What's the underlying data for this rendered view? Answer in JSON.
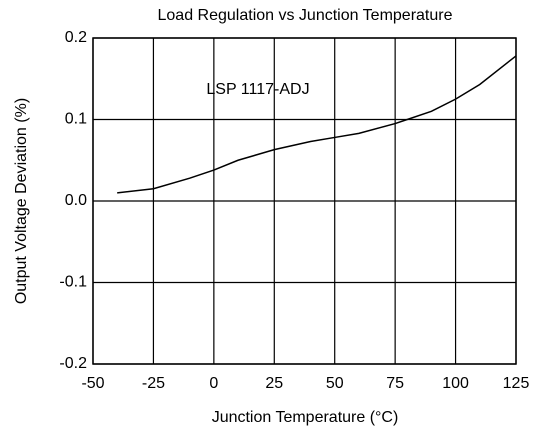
{
  "chart_data": {
    "type": "line",
    "title": "Load Regulation vs Junction Temperature",
    "xlabel": "Junction Temperature (°C)",
    "ylabel": "Output Voltage Deviation (%)",
    "annotation": "LSP 1117-ADJ",
    "x": [
      -40,
      -25,
      -10,
      0,
      10,
      25,
      40,
      50,
      60,
      75,
      80,
      90,
      100,
      110,
      125
    ],
    "series": [
      {
        "name": "LSP 1117-ADJ",
        "color": "#000000",
        "values": [
          0.01,
          0.015,
          0.028,
          0.038,
          0.05,
          0.063,
          0.073,
          0.078,
          0.083,
          0.095,
          0.1,
          0.11,
          0.125,
          0.143,
          0.178
        ]
      }
    ],
    "xlim": [
      -50,
      125
    ],
    "xticks": [
      -50,
      -25,
      0,
      25,
      50,
      75,
      100,
      125
    ],
    "ylim": [
      -0.2,
      0.2
    ],
    "yticks": [
      -0.2,
      -0.1,
      {
        "value": 0,
        "label": "0.0"
      },
      0.1,
      0.2
    ],
    "grid": true
  }
}
